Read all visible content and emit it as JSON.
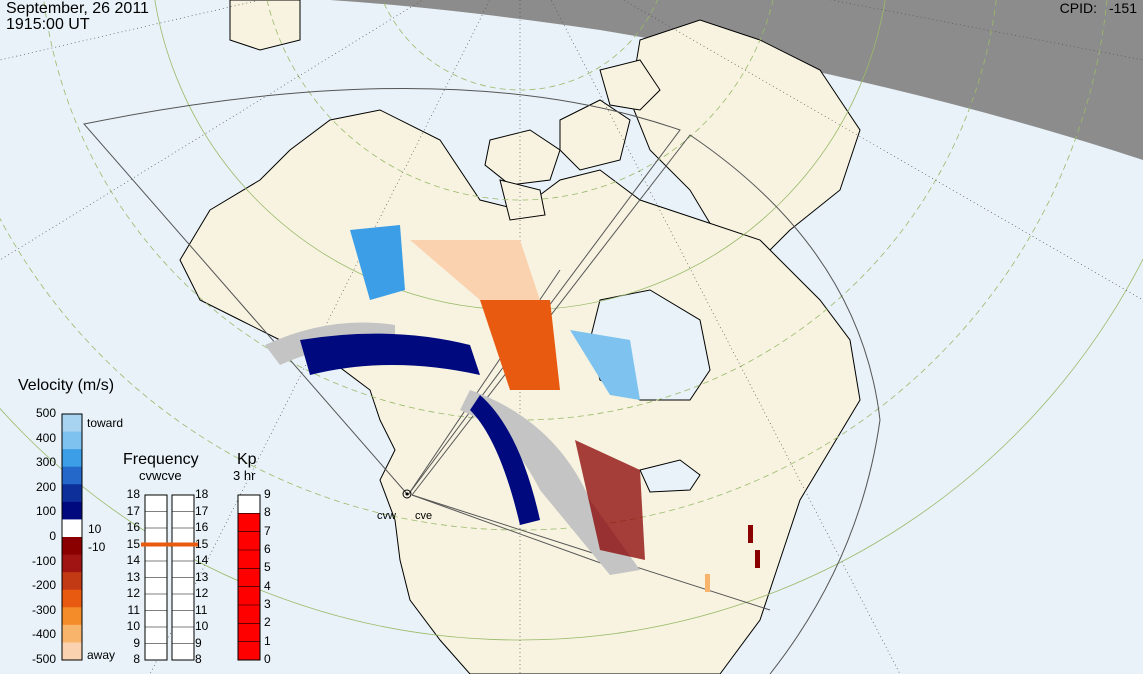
{
  "header": {
    "date": "September, 26 2011",
    "time": "1915:00 UT",
    "cpid_label": "CPID:",
    "cpid_value": "-151"
  },
  "radars": {
    "west": "cvw",
    "east": "cve"
  },
  "velocity_scale": {
    "title": "Velocity (m/s)",
    "toward_label": "toward",
    "away_label": "away",
    "ticks": [
      "500",
      "400",
      "300",
      "200",
      "100",
      "0",
      "-100",
      "-200",
      "-300",
      "-400",
      "-500"
    ],
    "threshold_pos": "10",
    "threshold_neg": "-10",
    "colors": [
      "#a8d4f2",
      "#7ec3ef",
      "#3b9ee6",
      "#2469c9",
      "#0c2f9a",
      "#000a7e",
      "#ffffff",
      "#8a0000",
      "#a01414",
      "#c23a14",
      "#e85a10",
      "#f58c2a",
      "#f7b46a",
      "#fad2b0"
    ]
  },
  "frequency_panel": {
    "title": "Frequency",
    "radar_labels": "cvwcve",
    "ticks_left": [
      "18",
      "17",
      "16",
      "15",
      "14",
      "13",
      "12",
      "11",
      "10",
      "9",
      "8"
    ],
    "ticks_right": [
      "18",
      "17",
      "16",
      "15",
      "14",
      "13",
      "12",
      "11",
      "10",
      "9",
      "8"
    ],
    "cvw_mhz": 15.0,
    "cve_mhz": 15.0,
    "marker_color": "#e85a10"
  },
  "kp_panel": {
    "title": "Kp",
    "subtitle": "3 hr",
    "ticks": [
      "9",
      "8",
      "7",
      "6",
      "5",
      "4",
      "3",
      "2",
      "1",
      "0"
    ],
    "value": 8,
    "fill_color": "#ff0000"
  },
  "map_colors": {
    "ocean": "#e8f2f8",
    "land": "#f7f3e0",
    "night": "#8c8c8c",
    "ground_scatter": "#c4c4c4"
  }
}
